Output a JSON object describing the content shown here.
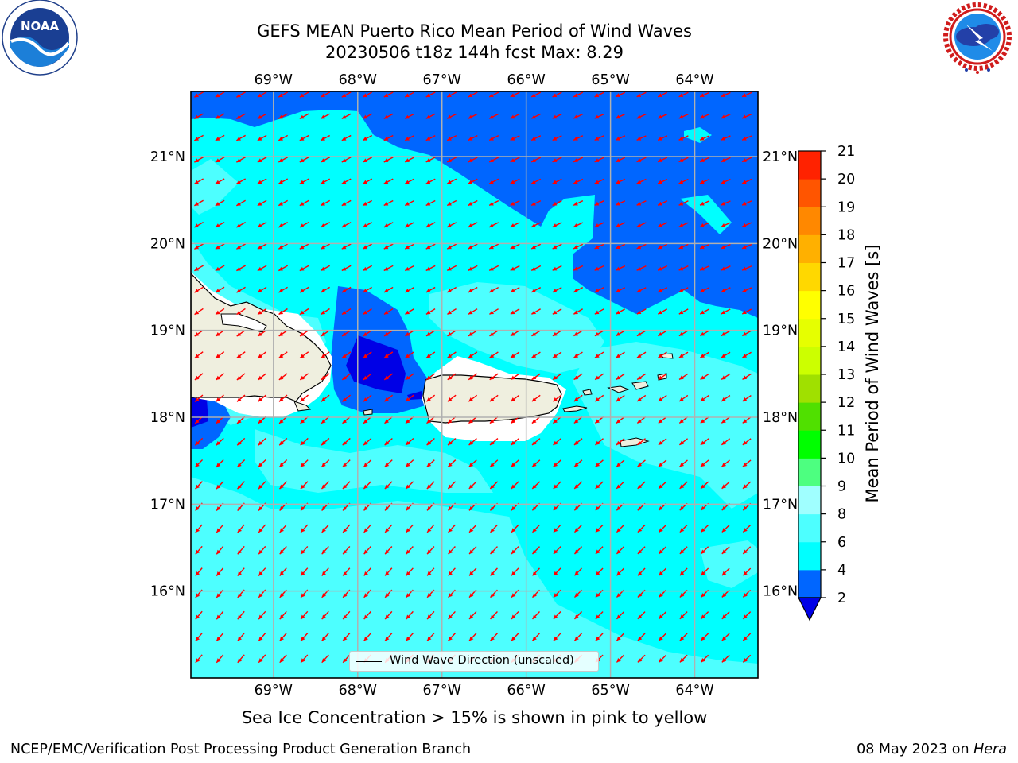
{
  "title": {
    "line1": "GEFS MEAN Puerto Rico Mean Period of Wind Waves",
    "line2": "20230506 t18z 144h fcst   Max: 8.29"
  },
  "logos": {
    "left": {
      "name": "noaa-logo",
      "text": "NOAA",
      "ring": "NATIONAL OCEANIC AND ATMOSPHERIC ADMINISTRATION · U.S. DEPARTMENT OF COMMERCE"
    },
    "right": {
      "name": "nws-logo",
      "ring": "NATIONAL WEATHER SERVICE"
    }
  },
  "map": {
    "lon_ticks": [
      "69°W",
      "68°W",
      "67°W",
      "66°W",
      "65°W",
      "64°W"
    ],
    "lat_ticks": [
      "21°N",
      "20°N",
      "19°N",
      "18°N",
      "17°N",
      "16°N"
    ],
    "extent": {
      "lon": [
        -69.98,
        -63.25
      ],
      "lat": [
        15.0,
        21.75
      ]
    },
    "land_color": "#efefdf",
    "arrow_color": "#ff0000",
    "grid": true
  },
  "legend": {
    "label": "Wind Wave Direction (unscaled)",
    "placement": "lower-center"
  },
  "colorbar": {
    "label": "Mean Period of Wind Waves [s]",
    "ticks": [
      "2",
      "4",
      "6",
      "8",
      "9",
      "10",
      "11",
      "12",
      "13",
      "14",
      "15",
      "16",
      "17",
      "18",
      "19",
      "20",
      "21"
    ],
    "colors": [
      "#0066ff",
      "#00ffff",
      "#4dffff",
      "#a0ffff",
      "#4dff80",
      "#00ff00",
      "#50e000",
      "#a0e000",
      "#ccff00",
      "#e6ff00",
      "#ffff00",
      "#ffd800",
      "#ffb000",
      "#ff8800",
      "#ff5500",
      "#ff2200",
      "#ff0000"
    ],
    "under_color": "#0000e6",
    "range": [
      2,
      21
    ]
  },
  "note": "Sea Ice Concentration > 15% is shown in pink to yellow",
  "footer": {
    "left": "NCEP/EMC/Verification Post Processing Product Generation Branch",
    "date": "08 May 2023 on ",
    "host": "Hera"
  }
}
